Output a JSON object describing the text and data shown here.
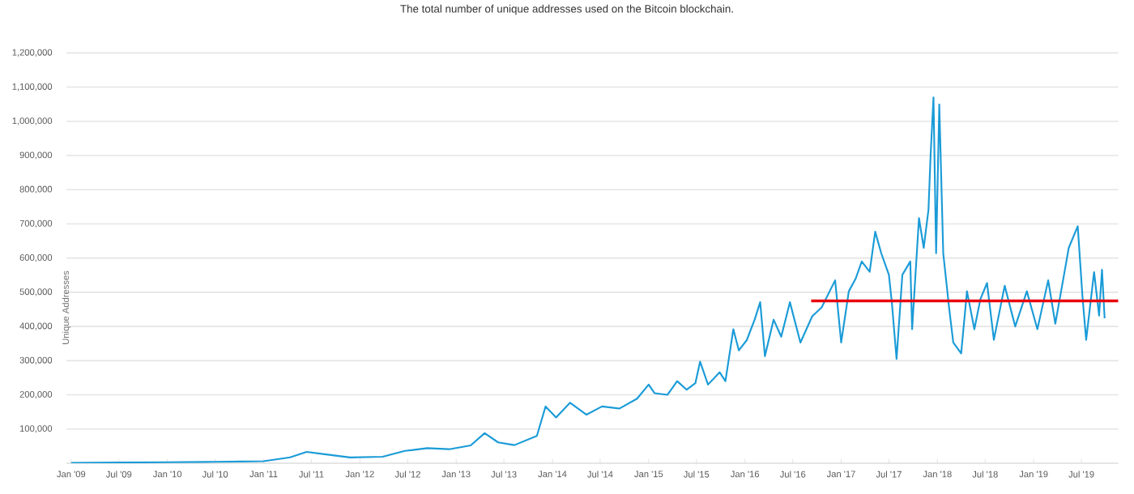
{
  "chart_data": {
    "type": "line",
    "title": "The total number of unique addresses used on the Bitcoin blockchain.",
    "ylabel": "Unique Addresses",
    "xlim": [
      "2008-12-14",
      "2019-11-18"
    ],
    "ylim": [
      0,
      1200000
    ],
    "xticks": [
      {
        "value": "2009-01-01",
        "label": "Jan '09"
      },
      {
        "value": "2009-07-01",
        "label": "Jul '09"
      },
      {
        "value": "2010-01-01",
        "label": "Jan '10"
      },
      {
        "value": "2010-07-01",
        "label": "Jul '10"
      },
      {
        "value": "2011-01-01",
        "label": "Jan '11"
      },
      {
        "value": "2011-07-01",
        "label": "Jul '11"
      },
      {
        "value": "2012-01-01",
        "label": "Jan '12"
      },
      {
        "value": "2012-07-01",
        "label": "Jul '12"
      },
      {
        "value": "2013-01-01",
        "label": "Jan '13"
      },
      {
        "value": "2013-07-01",
        "label": "Jul '13"
      },
      {
        "value": "2014-01-01",
        "label": "Jan '14"
      },
      {
        "value": "2014-07-01",
        "label": "Jul '14"
      },
      {
        "value": "2015-01-01",
        "label": "Jan '15"
      },
      {
        "value": "2015-07-01",
        "label": "Jul '15"
      },
      {
        "value": "2016-01-01",
        "label": "Jan '16"
      },
      {
        "value": "2016-07-01",
        "label": "Jul '16"
      },
      {
        "value": "2017-01-01",
        "label": "Jan '17"
      },
      {
        "value": "2017-07-01",
        "label": "Jul '17"
      },
      {
        "value": "2018-01-01",
        "label": "Jan '18"
      },
      {
        "value": "2018-07-01",
        "label": "Jul '18"
      },
      {
        "value": "2019-01-01",
        "label": "Jan '19"
      },
      {
        "value": "2019-07-01",
        "label": "Jul '19"
      }
    ],
    "yticks": [
      {
        "value": 100000,
        "label": "100,000"
      },
      {
        "value": 200000,
        "label": "200,000"
      },
      {
        "value": 300000,
        "label": "300,000"
      },
      {
        "value": 400000,
        "label": "400,000"
      },
      {
        "value": 500000,
        "label": "500,000"
      },
      {
        "value": 600000,
        "label": "600,000"
      },
      {
        "value": 700000,
        "label": "700,000"
      },
      {
        "value": 800000,
        "label": "800,000"
      },
      {
        "value": 900000,
        "label": "900,000"
      },
      {
        "value": 1000000,
        "label": "1,000,000"
      },
      {
        "value": 1100000,
        "label": "1,100,000"
      },
      {
        "value": 1200000,
        "label": "1,200,000"
      }
    ],
    "grid": "y",
    "series": [
      {
        "color": "#1a9bd7",
        "x": [
          "2009-01-01",
          "2009-07-01",
          "2010-01-01",
          "2010-07-01",
          "2010-10-11",
          "2011-01-01",
          "2011-04-11",
          "2011-06-13",
          "2011-08-14",
          "2011-11-25",
          "2012-03-27",
          "2012-06-20",
          "2012-09-13",
          "2012-12-06",
          "2013-02-25",
          "2013-04-19",
          "2013-06-09",
          "2013-08-10",
          "2013-11-03",
          "2013-12-06",
          "2014-01-15",
          "2014-03-09",
          "2014-05-10",
          "2014-07-08",
          "2014-09-13",
          "2014-11-18",
          "2015-01-01",
          "2015-01-23",
          "2015-03-13",
          "2015-04-19",
          "2015-05-25",
          "2015-06-27",
          "2015-07-15",
          "2015-08-14",
          "2015-09-27",
          "2015-10-19",
          "2015-11-18",
          "2015-12-09",
          "2016-01-08",
          "2016-02-07",
          "2016-02-28",
          "2016-03-17",
          "2016-04-19",
          "2016-05-18",
          "2016-06-20",
          "2016-07-30",
          "2016-09-13",
          "2016-10-19",
          "2016-12-09",
          "2017-01-01",
          "2017-01-30",
          "2017-02-25",
          "2017-03-20",
          "2017-04-19",
          "2017-05-10",
          "2017-06-02",
          "2017-07-01",
          "2017-07-12",
          "2017-07-30",
          "2017-08-21",
          "2017-09-20",
          "2017-09-27",
          "2017-10-23",
          "2017-11-10",
          "2017-11-28",
          "2017-12-06",
          "2017-12-17",
          "2017-12-27",
          "2018-01-08",
          "2018-01-23",
          "2018-02-14",
          "2018-03-02",
          "2018-04-01",
          "2018-04-23",
          "2018-05-21",
          "2018-06-13",
          "2018-07-08",
          "2018-08-03",
          "2018-09-13",
          "2018-10-23",
          "2018-12-06",
          "2019-01-15",
          "2019-02-25",
          "2019-03-24",
          "2019-04-26",
          "2019-05-14",
          "2019-06-17",
          "2019-07-05",
          "2019-07-19",
          "2019-08-18",
          "2019-09-06",
          "2019-09-17",
          "2019-09-27"
        ],
        "values": [
          1000,
          2000,
          3000,
          4000,
          5000,
          6000,
          17000,
          33000,
          27000,
          17000,
          19000,
          36000,
          44000,
          41000,
          52000,
          88000,
          61000,
          53000,
          80000,
          166000,
          134000,
          177000,
          142000,
          166000,
          160000,
          189000,
          230000,
          205000,
          200000,
          240000,
          215000,
          234000,
          297000,
          230000,
          266000,
          240000,
          392000,
          330000,
          360000,
          420000,
          471000,
          313000,
          420000,
          370000,
          471000,
          353000,
          430000,
          456000,
          535000,
          353000,
          503000,
          540000,
          590000,
          560000,
          677000,
          614000,
          551000,
          471000,
          305000,
          551000,
          590000,
          392000,
          717000,
          630000,
          741000,
          899000,
          1070000,
          614000,
          1049000,
          614000,
          456000,
          353000,
          321000,
          503000,
          392000,
          480000,
          527000,
          361000,
          519000,
          400000,
          503000,
          392000,
          535000,
          408000,
          551000,
          630000,
          693000,
          487000,
          361000,
          559000,
          432000,
          566000,
          424000
        ]
      },
      {
        "color": "#e8000b",
        "x": [
          "2016-09-09",
          "2019-11-18"
        ],
        "values": [
          475000,
          475000
        ]
      }
    ]
  }
}
